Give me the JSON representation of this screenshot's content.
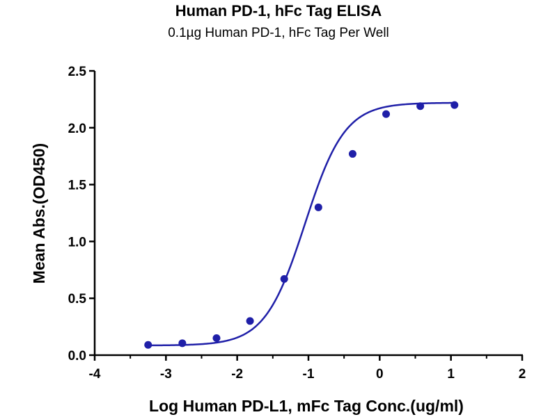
{
  "chart_data": {
    "type": "scatter",
    "title": "Human PD-1, hFc Tag ELISA",
    "subtitle": "0.1µg Human PD-1, hFc Tag Per Well",
    "xlabel": "Log Human PD-L1, mFc Tag Conc.(ug/ml)",
    "ylabel": "Mean Abs.(OD450)",
    "xlim": [
      -4,
      2
    ],
    "ylim": [
      0,
      2.5
    ],
    "xticks": [
      "-4",
      "-3",
      "-2",
      "-1",
      "0",
      "1",
      "2"
    ],
    "yticks": [
      "0.0",
      "0.5",
      "1.0",
      "1.5",
      "2.0",
      "2.5"
    ],
    "color": "#1f1fa8",
    "grid": false,
    "points": [
      {
        "x": -3.25,
        "y": 0.09
      },
      {
        "x": -2.77,
        "y": 0.105
      },
      {
        "x": -2.29,
        "y": 0.15
      },
      {
        "x": -1.82,
        "y": 0.3
      },
      {
        "x": -1.34,
        "y": 0.67
      },
      {
        "x": -0.86,
        "y": 1.3
      },
      {
        "x": -0.38,
        "y": 1.77
      },
      {
        "x": 0.09,
        "y": 2.12
      },
      {
        "x": 0.57,
        "y": 2.19
      },
      {
        "x": 1.05,
        "y": 2.2
      }
    ]
  }
}
